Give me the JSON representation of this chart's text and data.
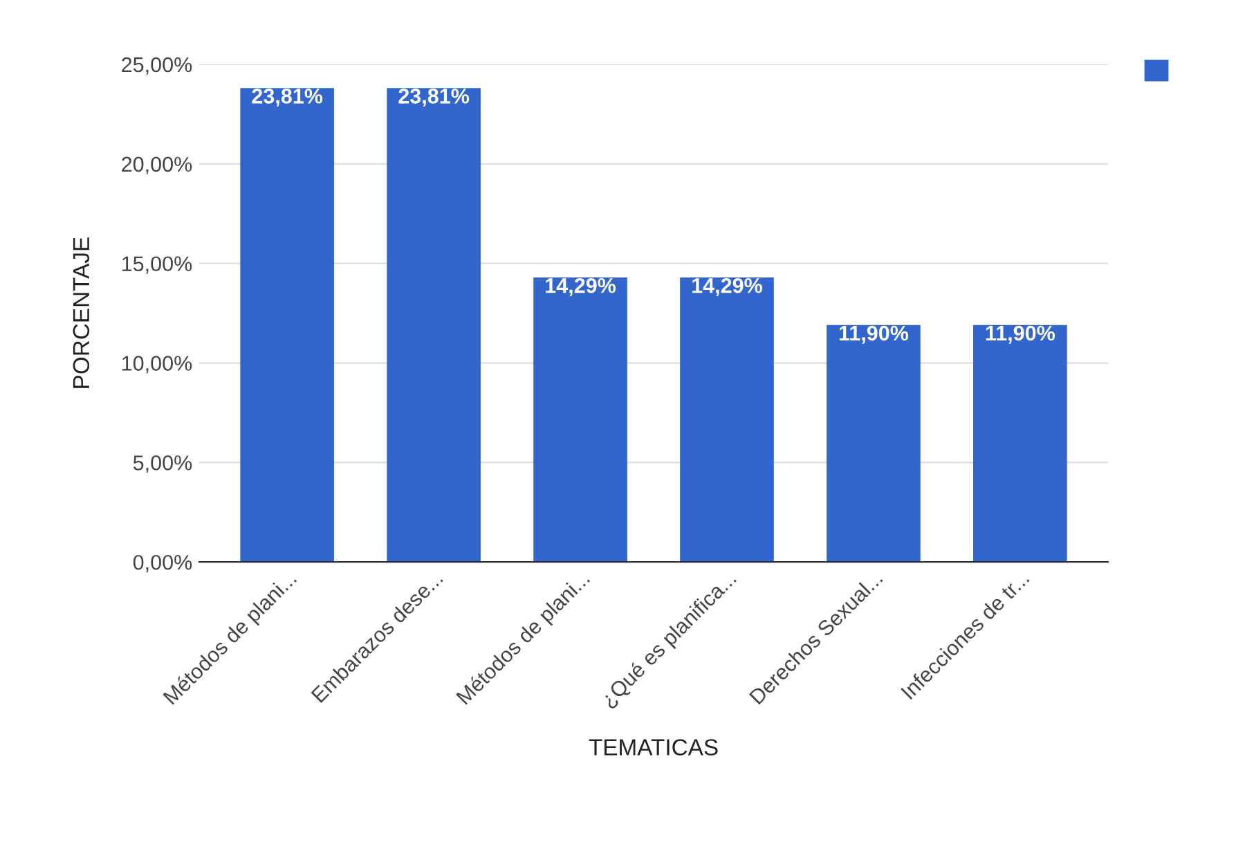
{
  "chart_data": {
    "type": "bar",
    "xlabel": "TEMATICAS",
    "ylabel": "PORCENTAJE",
    "categories": [
      "Métodos de plani...",
      "Embarazos dese...",
      "Métodos de plani...",
      "¿Qué es planifica...",
      "Derechos Sexual...",
      "Infecciones de tr..."
    ],
    "values": [
      23.81,
      23.81,
      14.29,
      14.29,
      11.9,
      11.9
    ],
    "value_labels": [
      "23,81%",
      "23,81%",
      "14,29%",
      "14,29%",
      "11,90%",
      "11,90%"
    ],
    "color": "#3366cc",
    "ylim": [
      0,
      25
    ],
    "yticks": [
      {
        "value": 0,
        "label": "0,00%"
      },
      {
        "value": 5,
        "label": "5,00%"
      },
      {
        "value": 10,
        "label": "10,00%"
      },
      {
        "value": 15,
        "label": "15,00%"
      },
      {
        "value": 20,
        "label": "20,00%"
      },
      {
        "value": 25,
        "label": "25,00%"
      }
    ],
    "grid": "y"
  }
}
